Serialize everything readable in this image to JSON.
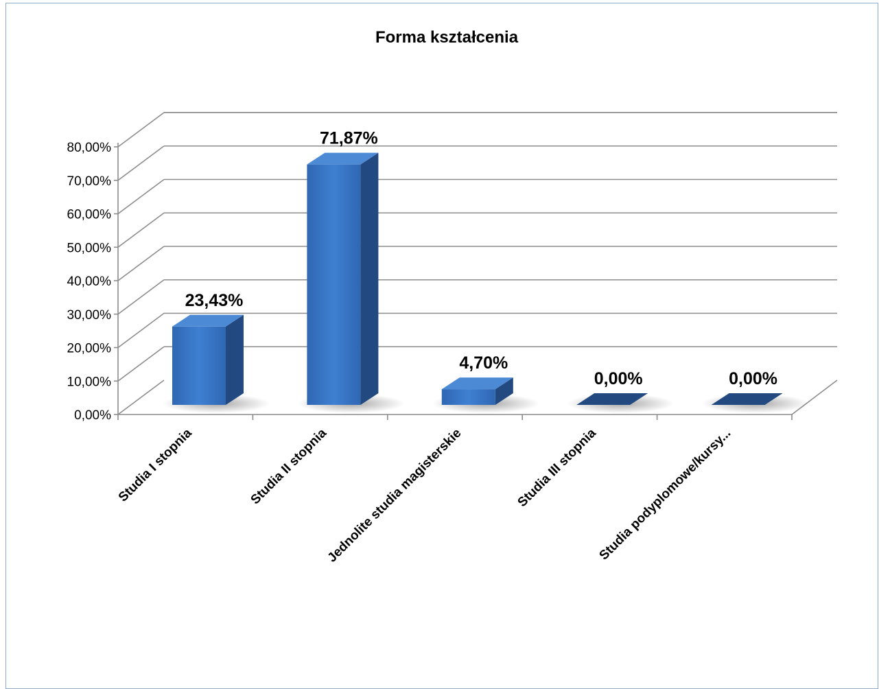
{
  "chart_data": {
    "type": "bar",
    "title": "Forma kształcenia",
    "categories": [
      "Studia I stopnia",
      "Studia II stopnia",
      "Jednolite studia magisterskie",
      "Studia III stopnia",
      "Studia podyplomowe/kursy..."
    ],
    "values": [
      23.43,
      71.87,
      4.7,
      0.0,
      0.0
    ],
    "value_labels": [
      "23,43%",
      "71,87%",
      "4,70%",
      "0,00%",
      "0,00%"
    ],
    "yticks": [
      "0,00%",
      "10,00%",
      "20,00%",
      "30,00%",
      "40,00%",
      "50,00%",
      "60,00%",
      "70,00%",
      "80,00%"
    ],
    "ylim": [
      0,
      80
    ],
    "grid": true,
    "legend": "none",
    "bar_color": "#3a78c9",
    "bar_side_color": "#234a80",
    "bar_top_color": "#4d8ad6",
    "gridline_color": "#8c8c8c"
  }
}
